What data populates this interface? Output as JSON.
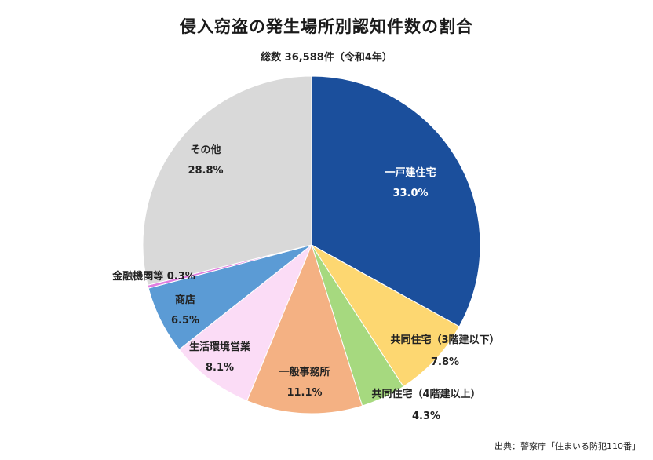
{
  "header": {
    "title": "侵入窃盗の発生場所別認知件数の割合",
    "subtitle": "総数 36,588件（令和4年）"
  },
  "footer": {
    "source": "出典：警察庁「住まいる防犯110番」"
  },
  "colors": {
    "detached_house": "#1b4f9c",
    "apt_low": "#fdd771",
    "apt_high": "#a6d97f",
    "office": "#f4b183",
    "living_env": "#fbdcf6",
    "shop": "#5b9bd5",
    "finance": "#e07ee0",
    "other": "#d9d9d9"
  },
  "chart_data": {
    "type": "pie",
    "title": "侵入窃盗の発生場所別認知件数の割合",
    "subtitle": "総数 36,588件（令和4年）",
    "unit": "%",
    "slices": [
      {
        "label": "一戸建住宅",
        "value": 33.0,
        "value_text": "33.0%",
        "color": "#1b4f9c"
      },
      {
        "label": "共同住宅（3階建以下）",
        "value": 7.8,
        "value_text": "7.8%",
        "color": "#fdd771"
      },
      {
        "label": "共同住宅（4階建以上）",
        "value": 4.3,
        "value_text": "4.3%",
        "color": "#a6d97f"
      },
      {
        "label": "一般事務所",
        "value": 11.1,
        "value_text": "11.1%",
        "color": "#f4b183"
      },
      {
        "label": "生活環境営業",
        "value": 8.1,
        "value_text": "8.1%",
        "color": "#fbdcf6"
      },
      {
        "label": "商店",
        "value": 6.5,
        "value_text": "6.5%",
        "color": "#5b9bd5"
      },
      {
        "label": "金融機関等",
        "value": 0.3,
        "value_text": "0.3%",
        "color": "#e07ee0"
      },
      {
        "label": "その他",
        "value": 28.8,
        "value_text": "28.8%",
        "color": "#d9d9d9"
      }
    ]
  }
}
